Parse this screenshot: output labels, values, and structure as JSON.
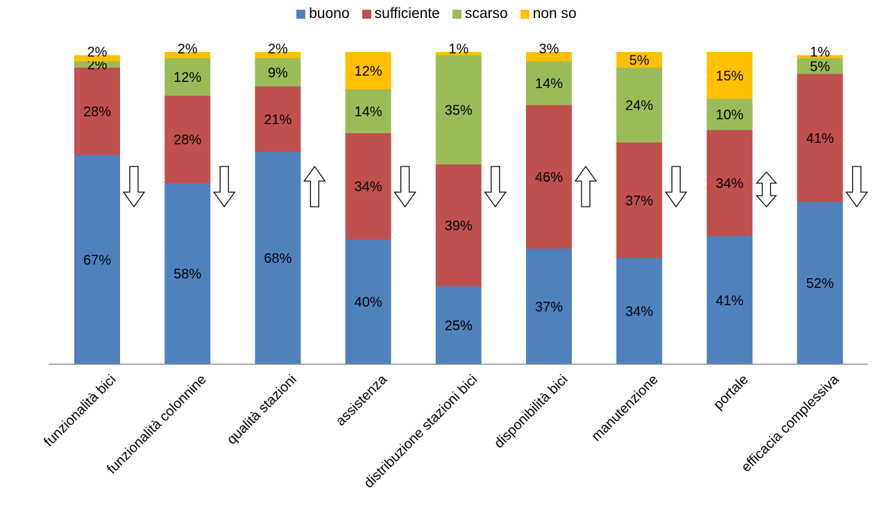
{
  "chart_data": {
    "type": "bar",
    "stacked": true,
    "categories": [
      "funzionalità  bici",
      "funzionalità colonnine",
      "qualità stazioni",
      "assistenza",
      "distribuzione stazioni bici",
      "disponibilità bici",
      "manutenzione",
      "portale",
      "efficacia complessiva"
    ],
    "series": [
      {
        "name": "buono",
        "color": "#4F81BD",
        "values": [
          67,
          58,
          68,
          40,
          25,
          37,
          34,
          41,
          52
        ],
        "labels": [
          "67%",
          "58%",
          "68%",
          "40%",
          "25%",
          "37%",
          "34%",
          "41%",
          "52%"
        ]
      },
      {
        "name": "sufficiente",
        "color": "#C0504D",
        "values": [
          28,
          28,
          21,
          34,
          39,
          46,
          37,
          34,
          41
        ],
        "labels": [
          "28%",
          "28%",
          "21%",
          "34%",
          "39%",
          "46%",
          "37%",
          "34%",
          "41%"
        ]
      },
      {
        "name": "scarso",
        "color": "#9BBB59",
        "values": [
          2,
          12,
          9,
          14,
          35,
          14,
          24,
          10,
          5
        ],
        "labels": [
          "2%",
          "12%",
          "9%",
          "14%",
          "35%",
          "14%",
          "24%",
          "10%",
          "5%"
        ]
      },
      {
        "name": "non so",
        "color": "#FFC000",
        "values": [
          2,
          2,
          2,
          12,
          1,
          3,
          5,
          15,
          1
        ],
        "labels": [
          "2%",
          "2%",
          "2%",
          "12%",
          "1%",
          "3%",
          "5%",
          "15%",
          "1%"
        ]
      }
    ],
    "trend_arrows": [
      "down",
      "down",
      "up",
      "down",
      "down",
      "up",
      "down",
      "both",
      "down"
    ],
    "ylim": [
      0,
      100
    ],
    "grid": false,
    "legend_position": "top-center"
  }
}
